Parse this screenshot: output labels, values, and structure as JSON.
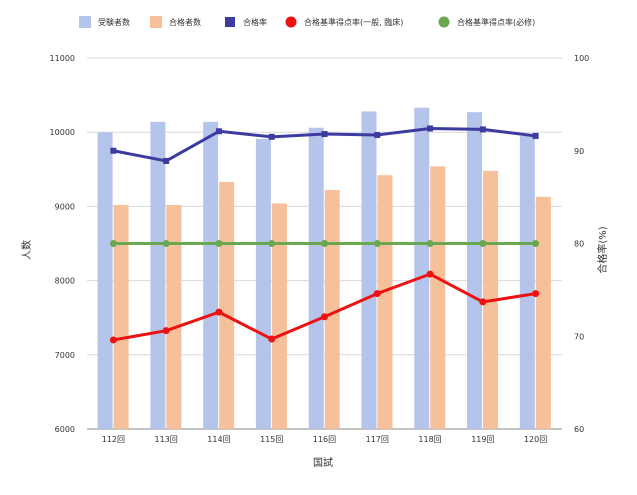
{
  "chart_data": {
    "type": "bar",
    "title": "",
    "xlabel": "国試",
    "ylabel": "人数",
    "y2label": "合格率(%)",
    "categories": [
      "112回",
      "113回",
      "114回",
      "115回",
      "116回",
      "117回",
      "118回",
      "119回",
      "120回"
    ],
    "ylim": [
      6000,
      11000
    ],
    "yticks": [
      6000,
      7000,
      8000,
      9000,
      10000,
      11000
    ],
    "y2lim": [
      60,
      100
    ],
    "y2ticks": [
      60,
      70,
      80,
      90,
      100
    ],
    "grid": true,
    "legend_position": "top",
    "series": [
      {
        "name": "受験者数",
        "type": "bar",
        "axis": "left",
        "color": "#b4c4ea",
        "values": [
          10000,
          10140,
          10140,
          9910,
          10060,
          10280,
          10330,
          10270,
          9950
        ]
      },
      {
        "name": "合格者数",
        "type": "bar",
        "axis": "left",
        "color": "#f5c09a",
        "values": [
          9020,
          9020,
          9330,
          9040,
          9220,
          9420,
          9540,
          9480,
          9130
        ]
      },
      {
        "name": "合格率",
        "type": "line",
        "axis": "right",
        "color": "#3c3ca0",
        "marker": "square",
        "values": [
          90.0,
          88.9,
          92.1,
          91.5,
          91.8,
          91.7,
          92.4,
          92.3,
          91.6
        ]
      },
      {
        "name": "合格基準得点率(一般, 臨床)",
        "type": "line",
        "axis": "right",
        "color": "#ee1111",
        "marker": "circle",
        "values": [
          69.6,
          70.6,
          72.6,
          69.7,
          72.1,
          74.6,
          76.7,
          73.7,
          74.6
        ]
      },
      {
        "name": "合格基準得点率(必修)",
        "type": "line",
        "axis": "right",
        "color": "#6aa84f",
        "marker": "circle",
        "values": [
          80,
          80,
          80,
          80,
          80,
          80,
          80,
          80,
          80
        ]
      }
    ]
  }
}
